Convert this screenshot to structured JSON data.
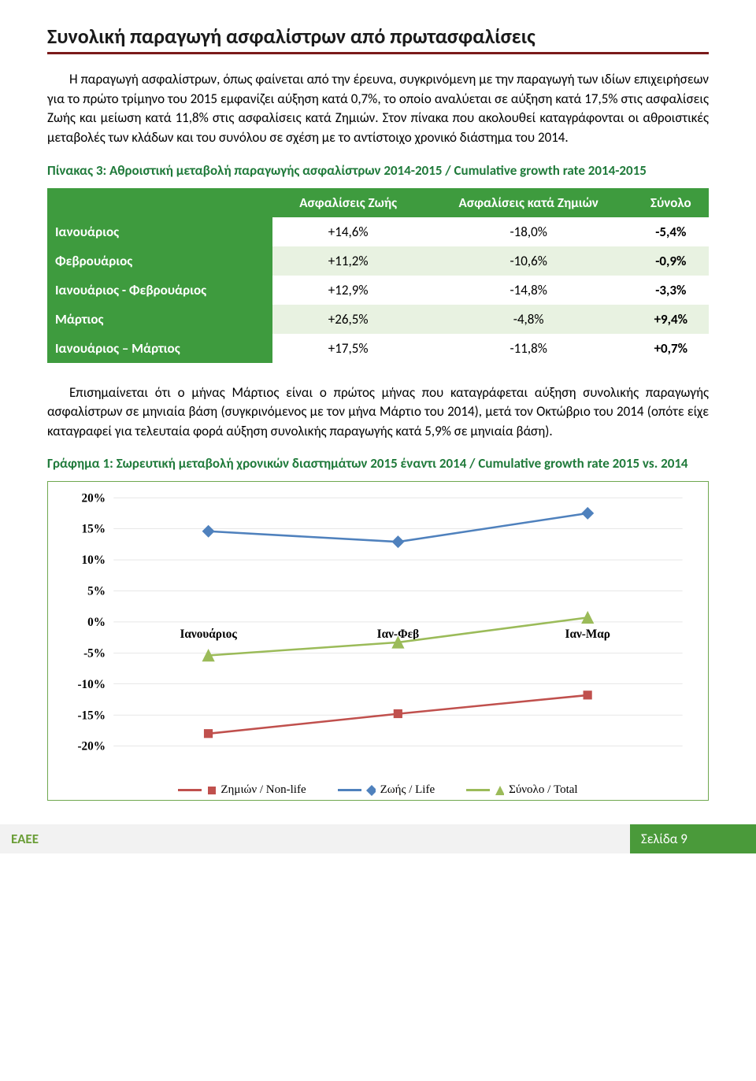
{
  "heading": "Συνολική παραγωγή ασφαλίστρων από πρωτασφαλίσεις",
  "para1": "Η παραγωγή ασφαλίστρων, όπως φαίνεται από την έρευνα, συγκρινόμενη με την παραγωγή των ιδίων επιχειρήσεων για το πρώτο τρίμηνο του 2015 εμφανίζει αύξηση κατά 0,7%, το οποίο αναλύεται σε αύξηση κατά 17,5% στις ασφαλίσεις Ζωής και μείωση κατά 11,8% στις ασφαλίσεις κατά Ζημιών. Στον πίνακα που ακολουθεί καταγράφονται οι αθροιστικές μεταβολές των κλάδων και του συνόλου σε σχέση με το αντίστοιχο χρονικό διάστημα του 2014.",
  "caption_table": "Πίνακας 3: Αθροιστική μεταβολή παραγωγής ασφαλίστρων 2014-2015 / Cumulative growth rate 2014-2015",
  "table": {
    "headers": [
      "",
      "Ασφαλίσεις Ζωής",
      "Ασφαλίσεις κατά Ζημιών",
      "Σύνολο"
    ],
    "rows": [
      [
        "Ιανουάριος",
        "+14,6%",
        "-18,0%",
        "-5,4%"
      ],
      [
        "Φεβρουάριος",
        "+11,2%",
        "-10,6%",
        "-0,9%"
      ],
      [
        "Ιανουάριος - Φεβρουάριος",
        "+12,9%",
        "-14,8%",
        "-3,3%"
      ],
      [
        "Μάρτιος",
        "+26,5%",
        "-4,8%",
        "+9,4%"
      ],
      [
        "Ιανουάριος – Μάρτιος",
        "+17,5%",
        "-11,8%",
        "+0,7%"
      ]
    ],
    "header_bg": "#3e9b3e",
    "header_fg": "#ffffff",
    "row_alt_bg": "#e8f2e1"
  },
  "para2": "Επισημαίνεται ότι ο μήνας Μάρτιος είναι ο πρώτος μήνας που καταγράφεται αύξηση συνολικής παραγωγής ασφαλίστρων σε μηνιαία βάση (συγκρινόμενος με τον μήνα Μάρτιο του 2014), μετά τον Οκτώβριο του 2014 (οπότε είχε καταγραφεί για τελευταία φορά αύξηση συνολικής παραγωγής κατά 5,9% σε μηνιαία βάση).",
  "caption_chart": "Γράφημα 1: Σωρευτική μεταβολή χρονικών διαστημάτων 2015 έναντι 2014 / Cumulative growth rate 2015 vs. 2014",
  "chart": {
    "type": "line",
    "categories": [
      "Ιανουάριος",
      "Ιαν-Φεβ",
      "Ιαν-Μαρ"
    ],
    "ylim": [
      -20,
      20
    ],
    "ytick_step": 5,
    "ytick_labels": [
      "20%",
      "15%",
      "10%",
      "5%",
      "0%",
      "-5%",
      "-10%",
      "-15%",
      "-20%"
    ],
    "grid_color": "#d9d9d9",
    "background_color": "#ffffff",
    "border_color": "#6fa84f",
    "series": [
      {
        "name": "Ζημιών / Non-life",
        "color": "#c0504d",
        "marker": "square",
        "values": [
          -18.0,
          -14.8,
          -11.8
        ]
      },
      {
        "name": "Ζωής / Life",
        "color": "#4f81bd",
        "marker": "diamond",
        "values": [
          14.6,
          12.9,
          17.5
        ]
      },
      {
        "name": "Σύνολο / Total",
        "color": "#9bbb59",
        "marker": "triangle",
        "values": [
          -5.4,
          -3.3,
          0.7
        ]
      }
    ]
  },
  "footer": {
    "left": "ΕΑΕΕ",
    "right": "Σελίδα 9",
    "left_bg": "#f2f2f2",
    "left_fg": "#6b9e38",
    "right_bg": "#4a9a3a",
    "right_fg": "#ffffff"
  }
}
